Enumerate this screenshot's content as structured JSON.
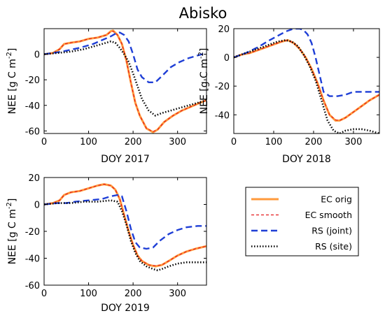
{
  "figure": {
    "title": "Abisko"
  },
  "legend": {
    "entries": [
      {
        "label": "EC orig",
        "color": "#ff9a3c",
        "style": "solid"
      },
      {
        "label": "EC smooth",
        "color": "#e41a1c",
        "style": "dashed"
      },
      {
        "label": "RS (joint)",
        "color": "#1f3fd6",
        "style": "dashed"
      },
      {
        "label": "RS (site)",
        "color": "#000000",
        "style": "dotted"
      }
    ]
  },
  "chart_data": [
    {
      "type": "line",
      "title": "",
      "xlabel": "DOY 2017",
      "ylabel": "NEE [g C m-2]",
      "ylabel_main": "NEE [g C m",
      "ylabel_sup": "-2",
      "ylabel_tail": "]",
      "xlim": [
        0,
        365
      ],
      "ylim": [
        -62,
        20
      ],
      "xticks": [
        "0",
        "100",
        "200",
        "300"
      ],
      "yticks": [
        "0",
        "-20",
        "-40",
        "-60"
      ],
      "grid": false,
      "series": [
        {
          "name": "EC orig",
          "x": [
            0,
            20,
            35,
            45,
            60,
            80,
            100,
            120,
            140,
            150,
            155,
            165,
            175,
            185,
            195,
            205,
            215,
            230,
            245,
            255,
            270,
            290,
            310,
            330,
            350,
            365
          ],
          "y": [
            0,
            1,
            4,
            8,
            9,
            10,
            12,
            13,
            15,
            18,
            18.5,
            15,
            8,
            -5,
            -22,
            -38,
            -48,
            -58,
            -61,
            -59,
            -53,
            -48,
            -44,
            -41,
            -38,
            -36
          ]
        },
        {
          "name": "EC smooth",
          "x": [
            0,
            20,
            35,
            45,
            60,
            80,
            100,
            120,
            140,
            150,
            155,
            165,
            175,
            185,
            195,
            205,
            215,
            230,
            245,
            255,
            270,
            290,
            310,
            330,
            350,
            365
          ],
          "y": [
            0,
            1,
            4,
            8,
            9,
            10,
            12,
            13,
            15,
            17.5,
            18,
            15,
            8,
            -5,
            -22,
            -38,
            -48,
            -58,
            -60.5,
            -59,
            -53,
            -48,
            -44,
            -41,
            -38,
            -36
          ]
        },
        {
          "name": "RS (joint)",
          "x": [
            0,
            40,
            80,
            110,
            130,
            150,
            160,
            170,
            180,
            190,
            200,
            210,
            220,
            235,
            250,
            265,
            285,
            305,
            325,
            345,
            365
          ],
          "y": [
            0,
            2,
            5,
            8,
            11,
            14,
            16,
            17,
            15,
            10,
            0,
            -12,
            -18,
            -22,
            -22,
            -17,
            -10,
            -6,
            -3,
            -1,
            1
          ]
        },
        {
          "name": "RS (site)",
          "x": [
            0,
            30,
            60,
            90,
            120,
            140,
            150,
            160,
            170,
            180,
            190,
            200,
            210,
            220,
            235,
            250,
            265,
            285,
            305,
            325,
            345,
            365
          ],
          "y": [
            0,
            1,
            2,
            4,
            7,
            9,
            10,
            9,
            5,
            0,
            -6,
            -15,
            -25,
            -35,
            -44,
            -48,
            -46,
            -44,
            -42,
            -40,
            -38,
            -36
          ]
        }
      ]
    },
    {
      "type": "line",
      "title": "",
      "xlabel": "DOY 2018",
      "ylabel": "NEE [g C m-2]",
      "ylabel_main": "NEE [g C m",
      "ylabel_sup": "-2",
      "ylabel_tail": "]",
      "xlim": [
        0,
        365
      ],
      "ylim": [
        -53,
        20
      ],
      "xticks": [
        "0",
        "100",
        "200",
        "300"
      ],
      "yticks": [
        "20",
        "0",
        "-20",
        "-40"
      ],
      "grid": false,
      "series": [
        {
          "name": "EC orig",
          "x": [
            0,
            20,
            40,
            60,
            80,
            100,
            120,
            135,
            150,
            165,
            180,
            195,
            210,
            225,
            240,
            255,
            265,
            280,
            300,
            320,
            340,
            365
          ],
          "y": [
            0,
            2,
            3,
            5,
            7,
            9,
            11,
            12,
            10,
            6,
            0,
            -8,
            -18,
            -30,
            -40,
            -44,
            -44,
            -42,
            -38,
            -34,
            -30,
            -26
          ]
        },
        {
          "name": "EC smooth",
          "x": [
            0,
            20,
            40,
            60,
            80,
            100,
            120,
            135,
            150,
            165,
            180,
            195,
            210,
            225,
            240,
            255,
            265,
            280,
            300,
            320,
            340,
            365
          ],
          "y": [
            0,
            2,
            3,
            5,
            7,
            9,
            11,
            12,
            10,
            6,
            0,
            -8,
            -18,
            -30,
            -40,
            -43.5,
            -44,
            -42,
            -38,
            -34,
            -30,
            -26
          ]
        },
        {
          "name": "RS (joint)",
          "x": [
            0,
            30,
            60,
            90,
            110,
            130,
            150,
            165,
            175,
            185,
            195,
            205,
            215,
            225,
            240,
            260,
            280,
            300,
            330,
            365
          ],
          "y": [
            0,
            3,
            7,
            12,
            15,
            18,
            20,
            20,
            19,
            16,
            10,
            0,
            -12,
            -24,
            -27,
            -27,
            -26,
            -24,
            -24,
            -24
          ]
        },
        {
          "name": "RS (site)",
          "x": [
            0,
            30,
            60,
            90,
            110,
            130,
            145,
            160,
            175,
            190,
            205,
            220,
            235,
            250,
            265,
            280,
            300,
            320,
            340,
            365
          ],
          "y": [
            0,
            3,
            6,
            9,
            11,
            12,
            11,
            8,
            2,
            -6,
            -16,
            -30,
            -44,
            -51,
            -53,
            -51,
            -50,
            -50,
            -51,
            -53
          ]
        }
      ]
    },
    {
      "type": "line",
      "title": "",
      "xlabel": "DOY 2019",
      "ylabel": "NEE [g C m-2]",
      "ylabel_main": "NEE [g C m",
      "ylabel_sup": "-2",
      "ylabel_tail": "]",
      "xlim": [
        0,
        365
      ],
      "ylim": [
        -60,
        20
      ],
      "xticks": [
        "0",
        "100",
        "200",
        "300"
      ],
      "yticks": [
        "20",
        "0",
        "-20",
        "-40",
        "-60"
      ],
      "grid": false,
      "series": [
        {
          "name": "EC orig",
          "x": [
            0,
            20,
            35,
            45,
            60,
            80,
            100,
            120,
            135,
            150,
            160,
            170,
            180,
            190,
            200,
            210,
            220,
            235,
            250,
            265,
            280,
            300,
            320,
            340,
            365
          ],
          "y": [
            0,
            1,
            3,
            7,
            9,
            10,
            12,
            14,
            15,
            14,
            11,
            4,
            -8,
            -20,
            -30,
            -38,
            -42,
            -45,
            -46,
            -45,
            -42,
            -38,
            -35,
            -33,
            -31
          ]
        },
        {
          "name": "EC smooth",
          "x": [
            0,
            20,
            35,
            45,
            60,
            80,
            100,
            120,
            135,
            150,
            160,
            170,
            180,
            190,
            200,
            210,
            220,
            235,
            250,
            265,
            280,
            300,
            320,
            340,
            365
          ],
          "y": [
            0,
            1,
            3,
            7,
            9,
            10,
            12,
            14,
            15,
            14,
            11,
            4,
            -8,
            -20,
            -30,
            -38,
            -42,
            -45,
            -45.5,
            -45,
            -42,
            -38,
            -35,
            -33,
            -31
          ]
        },
        {
          "name": "RS (joint)",
          "x": [
            0,
            30,
            50,
            70,
            100,
            130,
            150,
            165,
            175,
            185,
            195,
            205,
            215,
            230,
            245,
            260,
            280,
            300,
            320,
            345,
            365
          ],
          "y": [
            0,
            1,
            1,
            2,
            3,
            4,
            6,
            7,
            6,
            -5,
            -18,
            -28,
            -32,
            -33,
            -32,
            -27,
            -22,
            -19,
            -17,
            -16,
            -16
          ]
        },
        {
          "name": "RS (site)",
          "x": [
            0,
            30,
            60,
            90,
            120,
            150,
            165,
            175,
            185,
            195,
            205,
            215,
            230,
            245,
            255,
            265,
            280,
            300,
            320,
            345,
            365
          ],
          "y": [
            0,
            1,
            1,
            2,
            2,
            3,
            2,
            -5,
            -15,
            -27,
            -36,
            -42,
            -46,
            -48,
            -49,
            -48,
            -46,
            -44,
            -43,
            -43,
            -43
          ]
        }
      ]
    }
  ]
}
